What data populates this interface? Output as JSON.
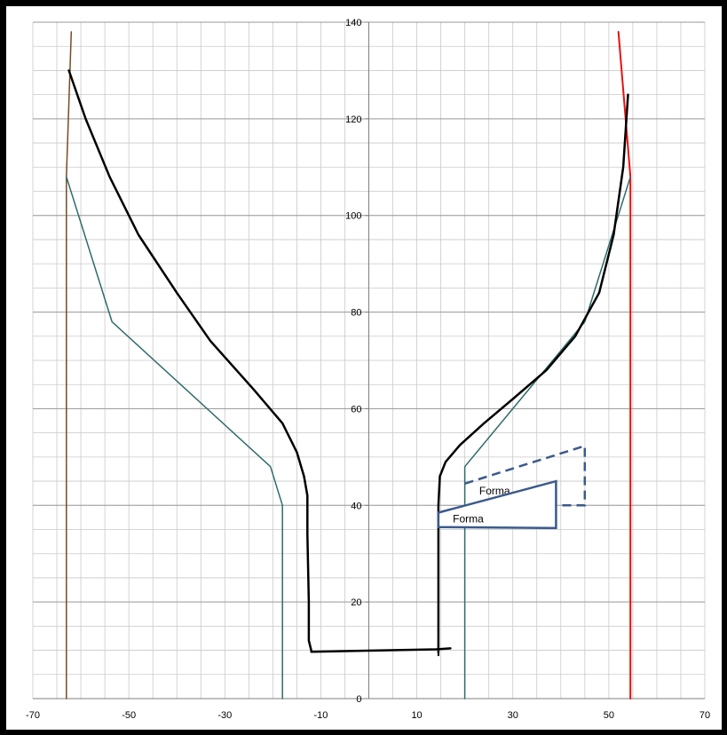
{
  "chart_data": {
    "type": "scatter",
    "title": "",
    "xlabel": "",
    "ylabel": "",
    "xlim": [
      -70,
      70
    ],
    "ylim": [
      0,
      140
    ],
    "x_ticks": [
      -70,
      -50,
      -30,
      -10,
      10,
      30,
      50,
      70
    ],
    "y_ticks": [
      0,
      20,
      40,
      60,
      80,
      100,
      120,
      140
    ],
    "x_tick_labels": [
      "-70",
      "-50",
      "-30",
      "-10",
      "10",
      "30",
      "50",
      "70"
    ],
    "y_tick_labels": [
      "0",
      "20",
      "40",
      "60",
      "80",
      "100",
      "120",
      "140"
    ],
    "grid": true,
    "x_minor_step": 5,
    "y_minor_step": 5,
    "series": [
      {
        "color": "#7a4a20",
        "width": 1.5,
        "points": [
          [
            -63,
            0
          ],
          [
            -63,
            108
          ],
          [
            -62,
            138
          ]
        ]
      },
      {
        "color": "#e81010",
        "width": 2,
        "points": [
          [
            54.5,
            0
          ],
          [
            54.5,
            108
          ],
          [
            52,
            138
          ]
        ]
      },
      {
        "color": "#2f6b6b",
        "width": 1.5,
        "points": [
          [
            -63,
            108
          ],
          [
            -53.5,
            78
          ],
          [
            -20.5,
            48
          ],
          [
            -18,
            40
          ],
          [
            -18,
            0
          ]
        ]
      },
      {
        "color": "#2f6b6b",
        "width": 1.5,
        "points": [
          [
            20,
            0
          ],
          [
            20,
            48
          ],
          [
            45,
            78
          ],
          [
            54.5,
            108
          ]
        ]
      },
      {
        "color": "#000000",
        "width": 2.5,
        "points": [
          [
            -62.5,
            130
          ],
          [
            -59,
            120
          ],
          [
            -54,
            108
          ],
          [
            -48,
            96
          ],
          [
            -40,
            84
          ],
          [
            -33,
            74
          ],
          [
            -24,
            64
          ],
          [
            -18,
            57
          ],
          [
            -15,
            51
          ],
          [
            -13.5,
            46
          ],
          [
            -12.8,
            42
          ],
          [
            -12.8,
            34
          ],
          [
            -12.5,
            20
          ],
          [
            -12.5,
            12
          ],
          [
            -12,
            10
          ]
        ]
      },
      {
        "color": "#000000",
        "width": 2.5,
        "points": [
          [
            -12,
            9.7
          ],
          [
            14,
            10.2
          ],
          [
            17,
            10.4
          ]
        ]
      },
      {
        "color": "#000000",
        "width": 2.5,
        "points": [
          [
            14.5,
            9.5
          ],
          [
            14.5,
            40
          ],
          [
            14.8,
            46
          ],
          [
            16,
            49
          ],
          [
            19,
            52.5
          ],
          [
            24,
            57
          ],
          [
            30,
            62
          ],
          [
            37,
            68
          ],
          [
            43,
            75
          ],
          [
            48,
            84
          ],
          [
            51,
            96
          ],
          [
            53,
            110
          ],
          [
            54,
            125
          ]
        ]
      }
    ],
    "shapes": [
      {
        "label": "Forma",
        "stroke": "#3a5a8c",
        "dashed": false,
        "points": [
          [
            14.5,
            38.5
          ],
          [
            39,
            45
          ],
          [
            39,
            35.3
          ],
          [
            14.5,
            35.5
          ]
        ]
      },
      {
        "label": "Forma",
        "stroke": "#3a5a8c",
        "dashed": true,
        "points": [
          [
            20,
            44.5
          ],
          [
            45,
            52.3
          ],
          [
            45,
            40
          ],
          [
            38,
            40
          ]
        ]
      }
    ]
  }
}
